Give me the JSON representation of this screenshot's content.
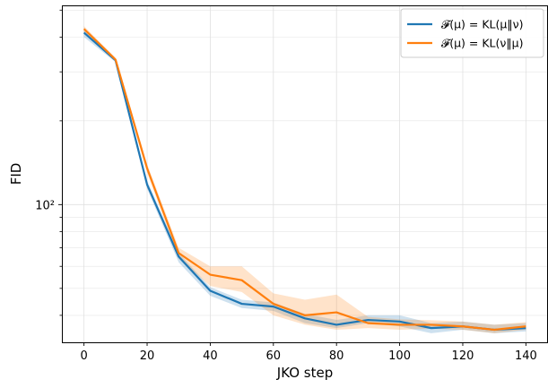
{
  "chart_data": {
    "type": "line",
    "xlabel": "JKO step",
    "ylabel": "FID",
    "yscale": "log",
    "xlim": [
      -7,
      147
    ],
    "ylim": [
      32,
      520
    ],
    "grid": true,
    "legend_position": "top-right",
    "x_ticks": [
      0,
      20,
      40,
      60,
      80,
      100,
      120,
      140
    ],
    "x_tick_labels": [
      "0",
      "20",
      "40",
      "60",
      "80",
      "100",
      "120",
      "140"
    ],
    "y_ticks": [
      100
    ],
    "y_tick_labels": [
      "10²"
    ],
    "y_tick_base": "10",
    "y_tick_exp": "2",
    "x": [
      0,
      10,
      20,
      30,
      40,
      50,
      60,
      70,
      80,
      90,
      100,
      110,
      120,
      130,
      140
    ],
    "series": [
      {
        "name": "𝓕(μ) = KL(μ‖ν)",
        "color": "#1f77b4",
        "values": [
          415,
          330,
          118,
          65,
          49,
          44,
          43,
          39,
          37,
          38.5,
          38,
          36,
          36.5,
          35.5,
          36
        ],
        "band_lower": [
          400,
          325,
          114,
          62,
          47,
          42.5,
          41.5,
          37.5,
          36,
          37.5,
          36.5,
          34.5,
          35.5,
          34.5,
          35
        ],
        "band_upper": [
          430,
          335,
          122,
          67,
          50.5,
          45.5,
          44.5,
          40.5,
          38.5,
          40,
          40,
          37.5,
          38,
          37,
          37.5
        ]
      },
      {
        "name": "𝓕(μ) = KL(ν‖μ)",
        "color": "#ff7f0e",
        "values": [
          428,
          332,
          135,
          67,
          56,
          53.5,
          44,
          40,
          41,
          37.5,
          37,
          37,
          36.5,
          35.5,
          36.5
        ],
        "band_lower": [
          418,
          328,
          130,
          64,
          51,
          48.5,
          40,
          37,
          35.5,
          36,
          35.5,
          35.8,
          35.5,
          34.5,
          35.5
        ],
        "band_upper": [
          438,
          337,
          140,
          70,
          60,
          60,
          48,
          45.5,
          47.5,
          39.5,
          38.7,
          38.4,
          38,
          37,
          37.8
        ]
      }
    ]
  }
}
